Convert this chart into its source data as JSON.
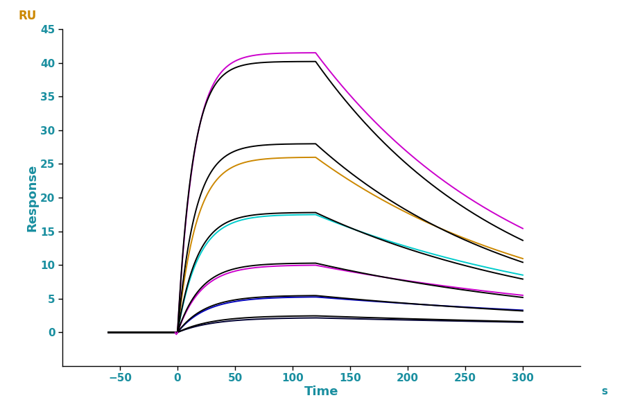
{
  "xlabel": "Time",
  "xlabel_unit": "s",
  "ylabel": "Response",
  "ylabel_top": "RU",
  "xlim": [
    -100,
    350
  ],
  "ylim": [
    -5,
    45
  ],
  "xticks": [
    -50,
    0,
    50,
    100,
    150,
    200,
    250,
    300
  ],
  "yticks": [
    0,
    5,
    10,
    15,
    20,
    25,
    30,
    35,
    40,
    45
  ],
  "association_start": 0,
  "association_end": 120,
  "dissociation_end": 300,
  "baseline_start": -60,
  "label_color_axes": "#1a8fa0",
  "label_color_ru": "#cc8800",
  "tick_label_color": "#1a8fa0",
  "axis_color": "#000000",
  "background_color": "#ffffff",
  "font_size_label": 13,
  "font_size_tick": 11,
  "font_size_ru": 12,
  "font_size_s": 11,
  "linewidth": 1.4,
  "curves": [
    {
      "color": "#cc00cc",
      "plateau": 41.5,
      "ka": 0.07,
      "kd": 0.0055,
      "fit_plateau": 40.2,
      "fit_ka": 0.075,
      "fit_kd": 0.006
    },
    {
      "color": "#cc8800",
      "plateau": 26.0,
      "ka": 0.06,
      "kd": 0.0048,
      "fit_plateau": 28.0,
      "fit_ka": 0.065,
      "fit_kd": 0.0055
    },
    {
      "color": "#00cccc",
      "plateau": 17.5,
      "ka": 0.055,
      "kd": 0.004,
      "fit_plateau": 17.8,
      "fit_ka": 0.058,
      "fit_kd": 0.0045
    },
    {
      "color": "#cc00cc",
      "plateau": 10.0,
      "ka": 0.048,
      "kd": 0.0033,
      "fit_plateau": 10.3,
      "fit_ka": 0.05,
      "fit_kd": 0.0038
    },
    {
      "color": "#0000bb",
      "plateau": 5.3,
      "ka": 0.04,
      "kd": 0.0026,
      "fit_plateau": 5.5,
      "fit_ka": 0.042,
      "fit_kd": 0.003
    },
    {
      "color": "#000033",
      "plateau": 2.2,
      "ka": 0.032,
      "kd": 0.002,
      "fit_plateau": 2.5,
      "fit_ka": 0.034,
      "fit_kd": 0.0024
    }
  ]
}
